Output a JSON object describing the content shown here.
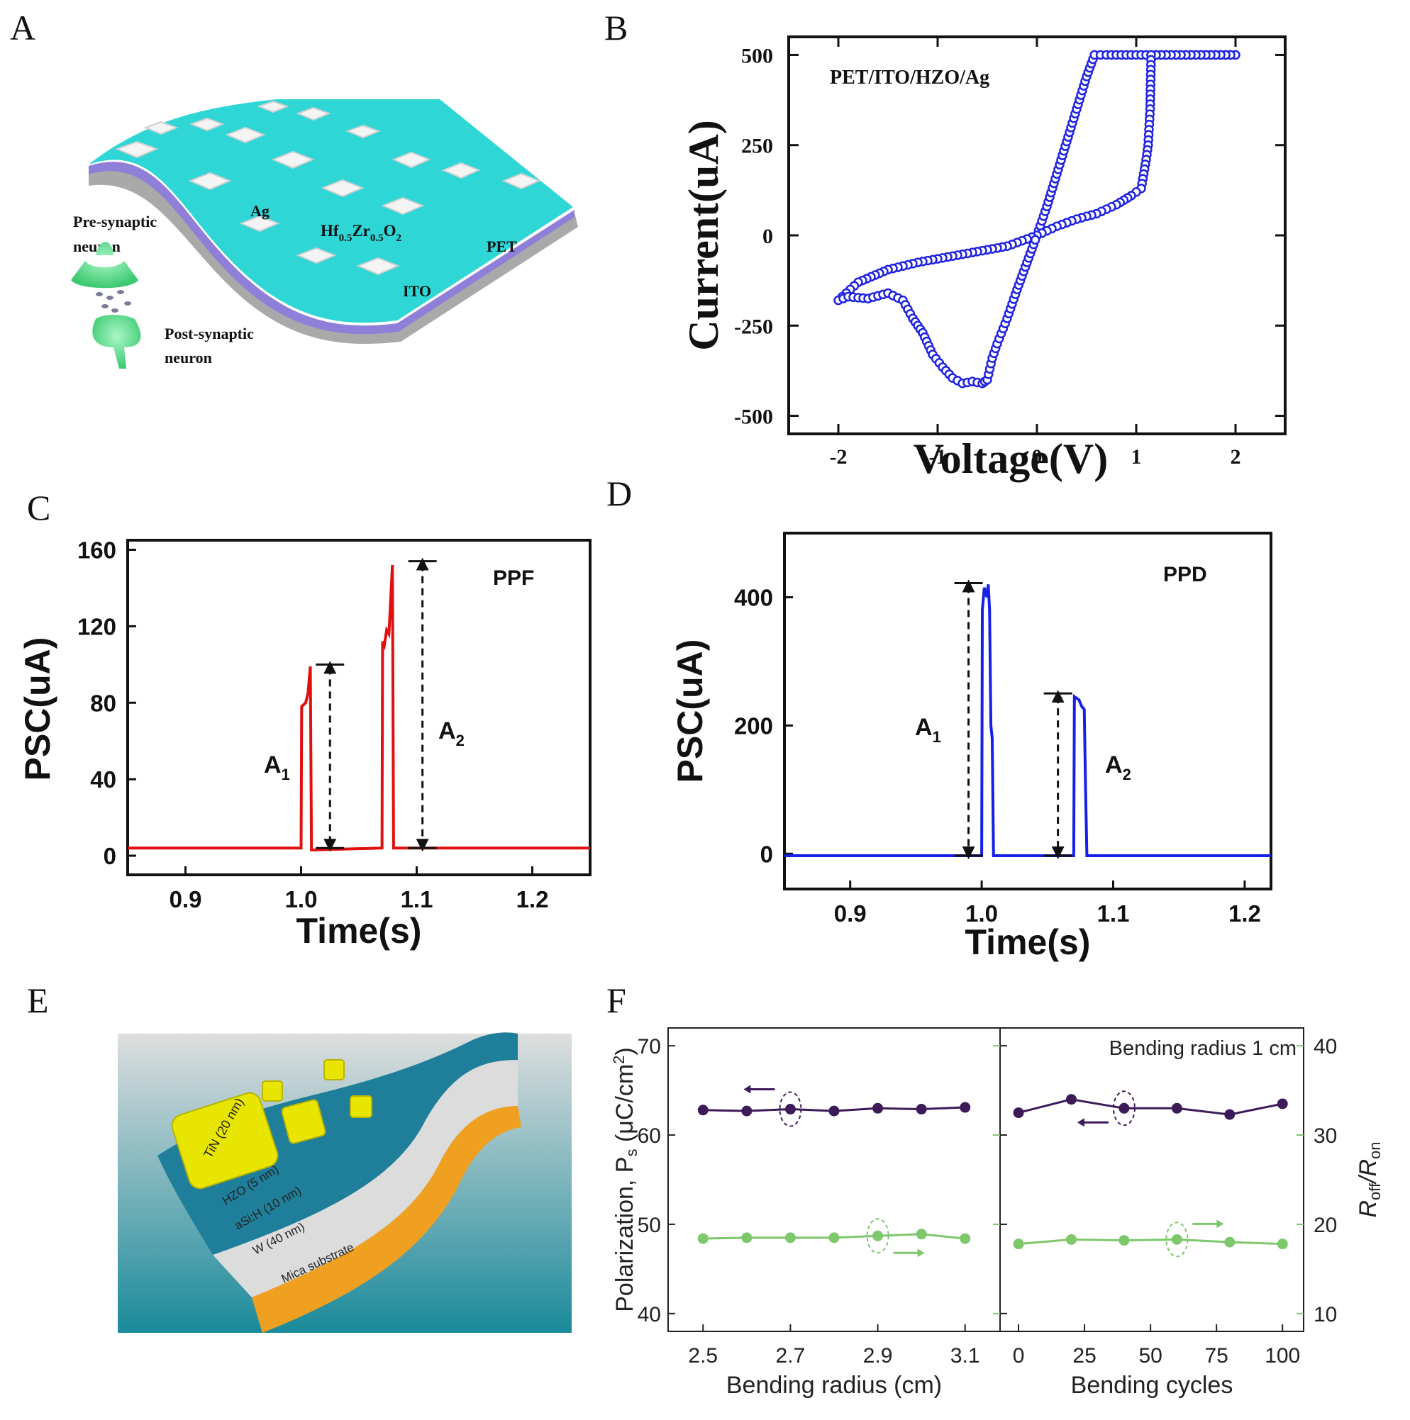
{
  "panels": {
    "A": {
      "letter": "A",
      "labels": {
        "ag": "Ag",
        "hzo_main": "Hf",
        "hzo_sub1": "0.5",
        "hzo_zr": "Zr",
        "hzo_sub2": "0.5",
        "hzo_o": "O",
        "hzo_sub3": "2",
        "pet": "PET",
        "ito": "ITO",
        "pre_line1": "Pre-synaptic",
        "pre_line2": "neuron",
        "post_line1": "Post-synaptic",
        "post_line2": "neuron"
      },
      "colors": {
        "top": "#2fd6d6",
        "mid": "#8f7fd8",
        "base": "#bdbdbd",
        "neuron": "#55e38a"
      }
    },
    "B": {
      "letter": "B"
    },
    "C": {
      "letter": "C"
    },
    "D": {
      "letter": "D"
    },
    "E": {
      "letter": "E",
      "labels": {
        "tin": "TiN (20 nm)",
        "hzo": "HZO (5 nm)",
        "asi": "aSi:H (10 nm)",
        "w": "W (40 nm)",
        "mica": "Mica substrate"
      },
      "colors": {
        "top": "#1f7e9a",
        "pad": "#e8e600",
        "mid": "#d9d9d9",
        "mica": "#f0a020",
        "bg_top": "#dedede",
        "bg_bottom": "#1a8a9a"
      }
    },
    "F": {
      "letter": "F"
    }
  },
  "chart_data": [
    {
      "panel": "B",
      "type": "line",
      "annotation": "PET/ITO/HZO/Ag",
      "xlabel": "Voltage(V)",
      "ylabel": "Current(uA)",
      "xlim": [
        -2.5,
        2.5
      ],
      "ylim": [
        -550,
        550
      ],
      "xticks": [
        -2,
        -1,
        0,
        1,
        2
      ],
      "xtick_labels": [
        "-2",
        "-1",
        "0",
        "1",
        "2"
      ],
      "yticks": [
        500,
        250,
        0,
        -250,
        -500
      ],
      "ytick_labels": [
        "500",
        "250",
        "0",
        "-250",
        "-500"
      ],
      "color": "#1f22e0",
      "series": [
        {
          "name": "forward-up",
          "x": [
            0,
            0.1,
            0.2,
            0.3,
            0.4,
            0.5,
            0.58,
            0.7,
            1.0,
            1.5,
            2.0
          ],
          "y": [
            0,
            80,
            170,
            260,
            350,
            440,
            500,
            500,
            500,
            500,
            500
          ]
        },
        {
          "name": "return-down",
          "x": [
            2.0,
            1.5,
            1.15,
            1.14,
            1.12,
            1.1,
            1.05,
            0.95,
            0.8,
            0.6,
            0.4,
            0.2,
            0
          ],
          "y": [
            500,
            500,
            500,
            350,
            250,
            210,
            130,
            110,
            85,
            60,
            45,
            25,
            0
          ]
        },
        {
          "name": "negative-sweep",
          "x": [
            0,
            -0.3,
            -0.6,
            -0.9,
            -1.2,
            -1.5,
            -1.8,
            -2.0
          ],
          "y": [
            0,
            -30,
            -45,
            -60,
            -75,
            -95,
            -130,
            -180
          ]
        },
        {
          "name": "negative-return",
          "x": [
            -2.0,
            -1.9,
            -1.7,
            -1.5,
            -1.35,
            -1.25,
            -1.15,
            -1.05,
            -0.95,
            -0.85,
            -0.75,
            -0.65,
            -0.55,
            -0.5,
            -0.45,
            -0.4,
            -0.3,
            -0.2,
            -0.1,
            0
          ],
          "y": [
            -180,
            -170,
            -175,
            -160,
            -180,
            -230,
            -270,
            -330,
            -365,
            -395,
            -410,
            -405,
            -410,
            -400,
            -340,
            -300,
            -230,
            -150,
            -75,
            0
          ]
        }
      ]
    },
    {
      "panel": "C",
      "type": "line",
      "annotation": "PPF",
      "xlabel": "Time(s)",
      "ylabel": "PSC(uA)",
      "xlim": [
        0.85,
        1.25
      ],
      "ylim": [
        -10,
        165
      ],
      "xticks": [
        0.9,
        1.0,
        1.1,
        1.2
      ],
      "xtick_labels": [
        "0.9",
        "1.0",
        "1.1",
        "1.2"
      ],
      "yticks": [
        0,
        40,
        80,
        120,
        160
      ],
      "ytick_labels": [
        "0",
        "40",
        "80",
        "120",
        "160"
      ],
      "color": "#e01010",
      "x": [
        0.85,
        1.0,
        1.0005,
        1.004,
        1.006,
        1.007,
        1.008,
        1.0085,
        1.009,
        1.07,
        1.0705,
        1.072,
        1.074,
        1.076,
        1.078,
        1.079,
        1.0795,
        1.08,
        1.25
      ],
      "y": [
        4,
        4,
        78,
        80,
        85,
        92,
        99,
        50,
        3,
        4,
        112,
        110,
        118,
        116,
        140,
        152,
        80,
        4,
        4
      ],
      "arrows": [
        {
          "label": "A",
          "sub": "1",
          "x": 1.025,
          "y_top": 100,
          "y_bot": 4
        },
        {
          "label": "A",
          "sub": "2",
          "x": 1.105,
          "y_top": 154,
          "y_bot": 4
        }
      ]
    },
    {
      "panel": "D",
      "type": "line",
      "annotation": "PPD",
      "xlabel": "Time(s)",
      "ylabel": "PSC(uA)",
      "xlim": [
        0.85,
        1.22
      ],
      "ylim": [
        -55,
        500
      ],
      "xticks": [
        0.9,
        1.0,
        1.1,
        1.2
      ],
      "xtick_labels": [
        "0.9",
        "1.0",
        "1.1",
        "1.2"
      ],
      "yticks": [
        0,
        200,
        400
      ],
      "ytick_labels": [
        "0",
        "200",
        "400"
      ],
      "color": "#1520e8",
      "x": [
        0.85,
        1.0,
        1.0005,
        1.002,
        1.004,
        1.005,
        1.006,
        1.007,
        1.008,
        1.009,
        1.07,
        1.0705,
        1.074,
        1.076,
        1.078,
        1.079,
        1.08,
        1.22
      ],
      "y": [
        -3,
        -3,
        380,
        415,
        400,
        420,
        380,
        200,
        180,
        -3,
        -3,
        245,
        240,
        230,
        225,
        100,
        -3,
        -3
      ],
      "arrows": [
        {
          "label": "A",
          "sub": "1",
          "x": 0.99,
          "y_top": 422,
          "y_bot": -3
        },
        {
          "label": "A",
          "sub": "2",
          "x": 1.058,
          "y_top": 250,
          "y_bot": -3
        }
      ]
    },
    {
      "panel": "F",
      "type": "scatter",
      "ylabel_left": "Polarization, P",
      "ylabel_left_sub": "s",
      "ylabel_left_unit": " (μC/cm",
      "ylabel_left_sup": "2",
      "ylabel_left_end": ")",
      "ylabel_right": "R",
      "ylabel_right_sub1": "off",
      "ylabel_right_mid": "/R",
      "ylabel_right_sub2": "on",
      "ylim_left": [
        38,
        72
      ],
      "ylim_right": [
        8,
        42
      ],
      "yticks_left": [
        40,
        50,
        60,
        70
      ],
      "ytick_labels_left": [
        "40",
        "50",
        "60",
        "70"
      ],
      "yticks_right": [
        10,
        20,
        30,
        40
      ],
      "ytick_labels_right": [
        "10",
        "20",
        "30",
        "40"
      ],
      "color_left": "#3d1a58",
      "color_right": "#7cc86b",
      "subplots": [
        {
          "xlabel": "Bending radius (cm)",
          "xlim": [
            2.42,
            3.18
          ],
          "xticks": [
            2.5,
            2.7,
            2.9,
            3.1
          ],
          "xtick_labels": [
            "2.5",
            "2.7",
            "2.9",
            "3.1"
          ],
          "x": [
            2.5,
            2.6,
            2.7,
            2.8,
            2.9,
            3.0,
            3.1
          ],
          "polarization": [
            62.8,
            62.7,
            62.9,
            62.7,
            63.0,
            62.9,
            63.1
          ],
          "ratio": [
            18.4,
            18.5,
            18.5,
            18.5,
            18.7,
            18.9,
            18.4
          ],
          "circle_left_x": 2.7,
          "circle_right_x": 2.9
        },
        {
          "xlabel": "Bending cycles",
          "annotation": "Bending radius 1 cm",
          "xlim": [
            -7,
            108
          ],
          "xticks": [
            0,
            25,
            50,
            75,
            100
          ],
          "xtick_labels": [
            "0",
            "25",
            "50",
            "75",
            "100"
          ],
          "x": [
            0,
            20,
            40,
            60,
            80,
            100
          ],
          "polarization": [
            62.5,
            64.0,
            63.0,
            63.0,
            62.3,
            63.5
          ],
          "ratio": [
            17.8,
            18.3,
            18.2,
            18.3,
            18.0,
            17.8
          ],
          "circle_left_x": 40,
          "circle_right_x": 60
        }
      ]
    }
  ]
}
